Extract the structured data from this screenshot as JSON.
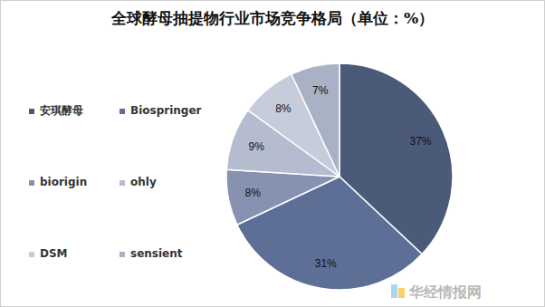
{
  "chart_data": {
    "type": "pie",
    "title": "全球酵母抽提物行业市场竞争格局（单位：%）",
    "categories": [
      "安琪酵母",
      "Biospringer",
      "biorigin",
      "ohly",
      "DSM",
      "sensient"
    ],
    "values": [
      37,
      31,
      8,
      9,
      8,
      7
    ],
    "value_labels": [
      "37%",
      "31%",
      "8%",
      "9%",
      "8%",
      "7%"
    ],
    "colors": [
      "#4b5a79",
      "#5d6f96",
      "#8792b1",
      "#b5bcd0",
      "#c7ccda",
      "#a9b1c5"
    ],
    "data_labels": true,
    "legend": "left",
    "annotations": [
      "华经情报网"
    ]
  }
}
